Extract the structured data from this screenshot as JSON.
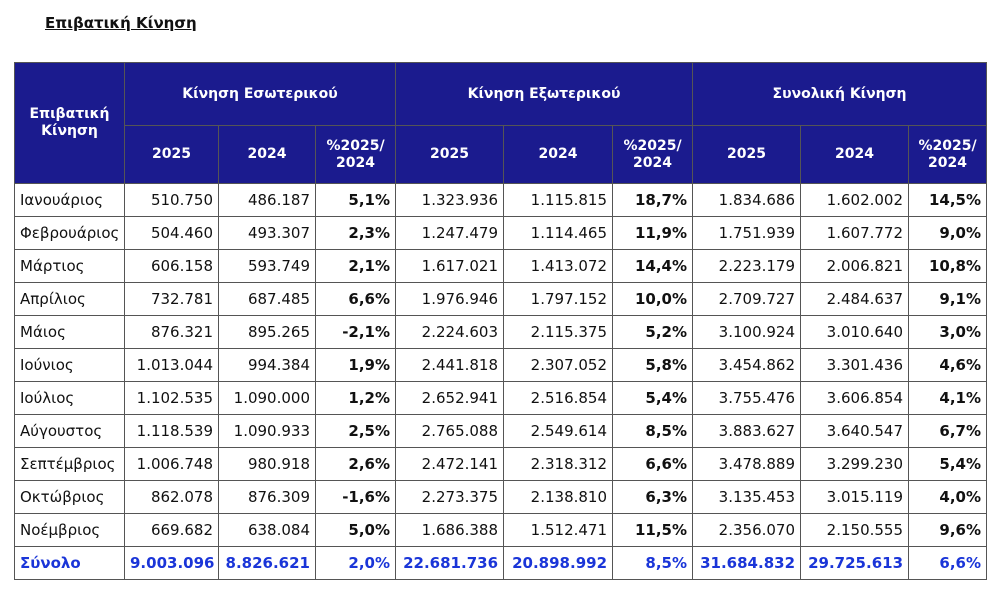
{
  "title": "Επιβατική Κίνηση",
  "table": {
    "corner": "Επιβατική Κίνηση",
    "groups": [
      "Κίνηση Εσωτερικού",
      "Κίνηση Εξωτερικού",
      "Συνολική Κίνηση"
    ],
    "subheaders": [
      "2025",
      "2024",
      "%2025/ 2024",
      "2025",
      "2024",
      "%2025/ 2024",
      "2025",
      "2024",
      "%2025/ 2024"
    ],
    "rows": [
      [
        "Ιανουάριος",
        "510.750",
        "486.187",
        "5,1%",
        "1.323.936",
        "1.115.815",
        "18,7%",
        "1.834.686",
        "1.602.002",
        "14,5%"
      ],
      [
        "Φεβρουάριος",
        "504.460",
        "493.307",
        "2,3%",
        "1.247.479",
        "1.114.465",
        "11,9%",
        "1.751.939",
        "1.607.772",
        "9,0%"
      ],
      [
        "Μάρτιος",
        "606.158",
        "593.749",
        "2,1%",
        "1.617.021",
        "1.413.072",
        "14,4%",
        "2.223.179",
        "2.006.821",
        "10,8%"
      ],
      [
        "Απρίλιος",
        "732.781",
        "687.485",
        "6,6%",
        "1.976.946",
        "1.797.152",
        "10,0%",
        "2.709.727",
        "2.484.637",
        "9,1%"
      ],
      [
        "Μάιος",
        "876.321",
        "895.265",
        "-2,1%",
        "2.224.603",
        "2.115.375",
        "5,2%",
        "3.100.924",
        "3.010.640",
        "3,0%"
      ],
      [
        "Ιούνιος",
        "1.013.044",
        "994.384",
        "1,9%",
        "2.441.818",
        "2.307.052",
        "5,8%",
        "3.454.862",
        "3.301.436",
        "4,6%"
      ],
      [
        "Ιούλιος",
        "1.102.535",
        "1.090.000",
        "1,2%",
        "2.652.941",
        "2.516.854",
        "5,4%",
        "3.755.476",
        "3.606.854",
        "4,1%"
      ],
      [
        "Αύγουστος",
        "1.118.539",
        "1.090.933",
        "2,5%",
        "2.765.088",
        "2.549.614",
        "8,5%",
        "3.883.627",
        "3.640.547",
        "6,7%"
      ],
      [
        "Σεπτέμβριος",
        "1.006.748",
        "980.918",
        "2,6%",
        "2.472.141",
        "2.318.312",
        "6,6%",
        "3.478.889",
        "3.299.230",
        "5,4%"
      ],
      [
        "Οκτώβριος",
        "862.078",
        "876.309",
        "-1,6%",
        "2.273.375",
        "2.138.810",
        "6,3%",
        "3.135.453",
        "3.015.119",
        "4,0%"
      ],
      [
        "Νοέμβριος",
        "669.682",
        "638.084",
        "5,0%",
        "1.686.388",
        "1.512.471",
        "11,5%",
        "2.356.070",
        "2.150.555",
        "9,6%"
      ]
    ],
    "total": [
      "Σύνολο",
      "9.003.096",
      "8.826.621",
      "2,0%",
      "22.681.736",
      "20.898.992",
      "8,5%",
      "31.684.832",
      "29.725.613",
      "6,6%"
    ]
  }
}
